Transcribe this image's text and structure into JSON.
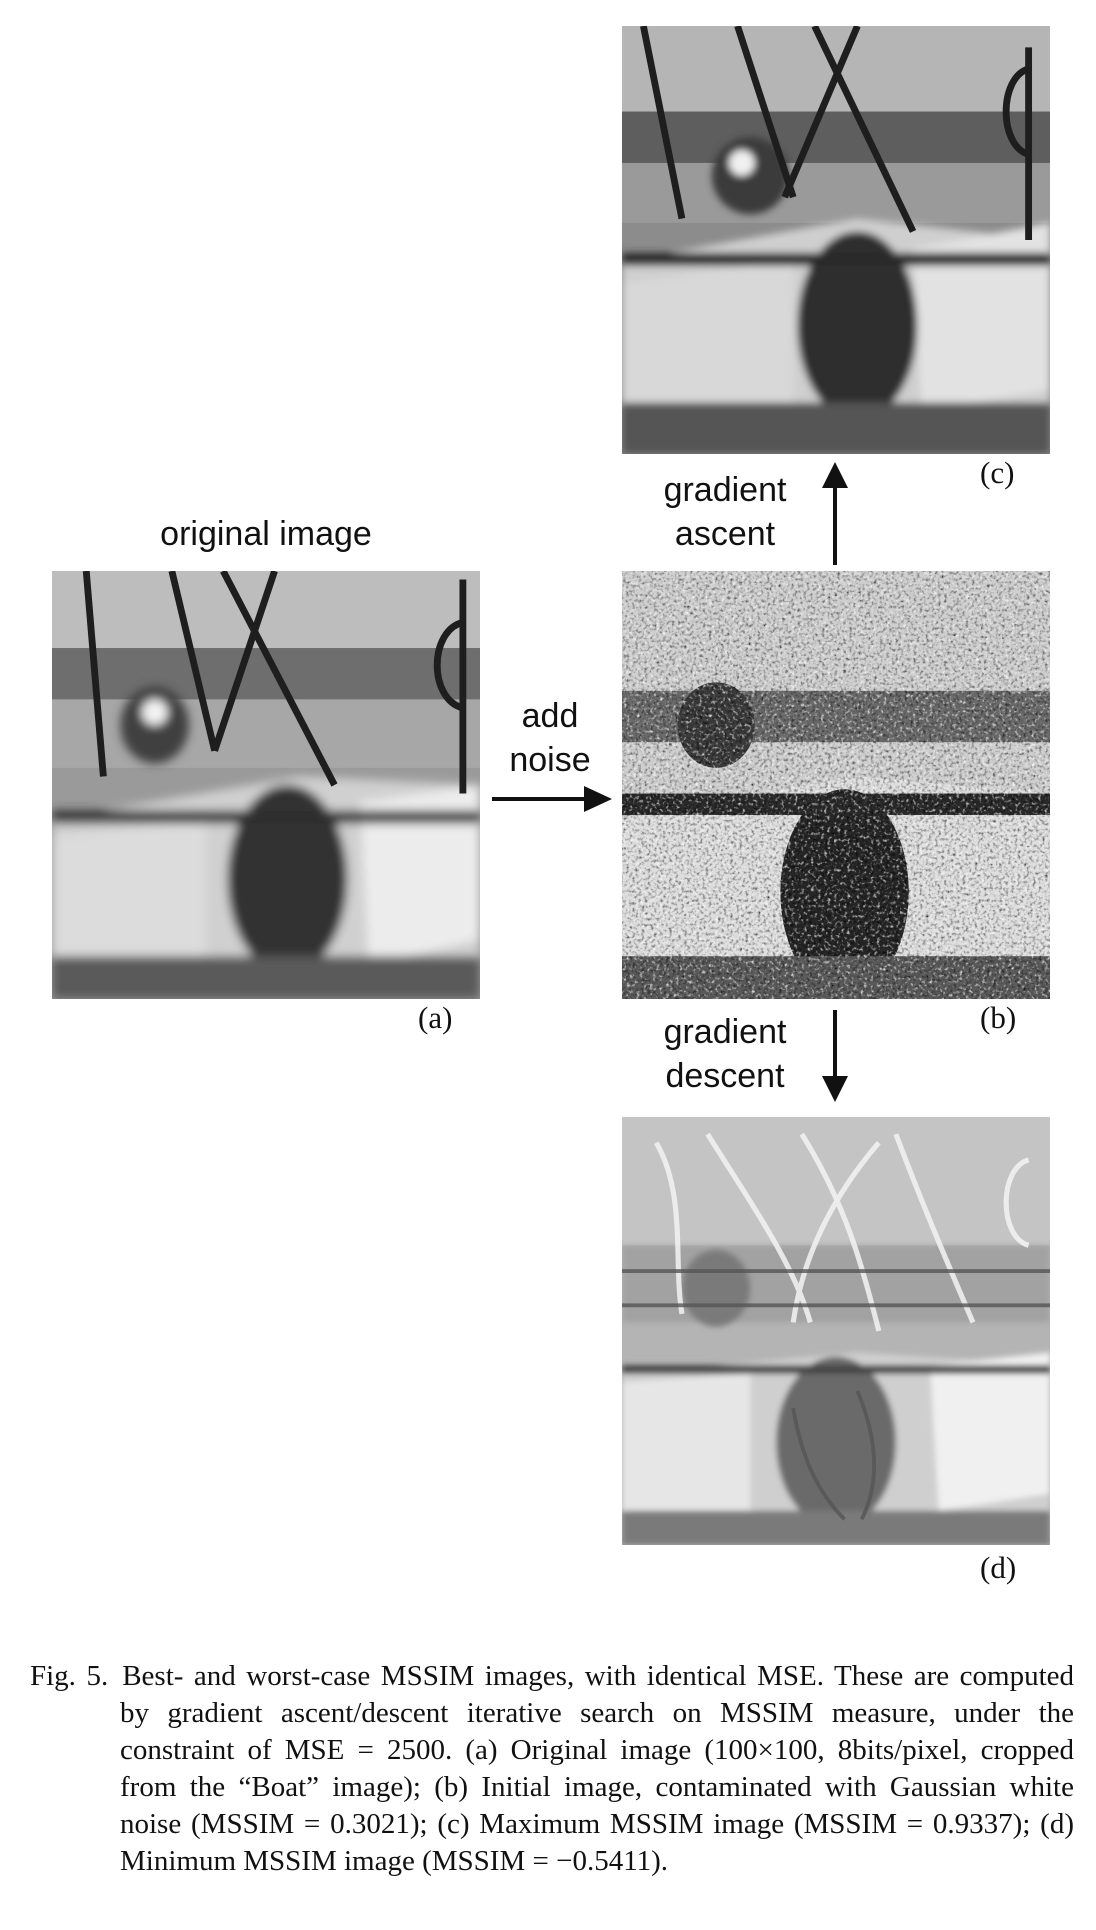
{
  "labels": {
    "original_image": "original image",
    "add_noise_line1": "add",
    "add_noise_line2": "noise",
    "gradient_ascent_line1": "gradient",
    "gradient_ascent_line2": "ascent",
    "gradient_descent_line1": "gradient",
    "gradient_descent_line2": "descent"
  },
  "panels": {
    "a": "(a)",
    "b": "(b)",
    "c": "(c)",
    "d": "(d)"
  },
  "caption": {
    "fig_label": "Fig. 5.",
    "text": "Best- and worst-case MSSIM images, with identical MSE. These are computed by gradient ascent/descent iterative search on MSSIM measure, under the constraint of MSE = 2500. (a) Original image (100×100, 8bits/pixel, cropped from the “Boat” image); (b) Initial image, contaminated with Gaussian white noise (MSSIM = 0.3021); (c) Maximum MSSIM image (MSSIM = 0.9337); (d) Minimum MSSIM image (MSSIM = −0.5411)."
  },
  "colors": {
    "ink": "#111111",
    "background": "#ffffff"
  }
}
